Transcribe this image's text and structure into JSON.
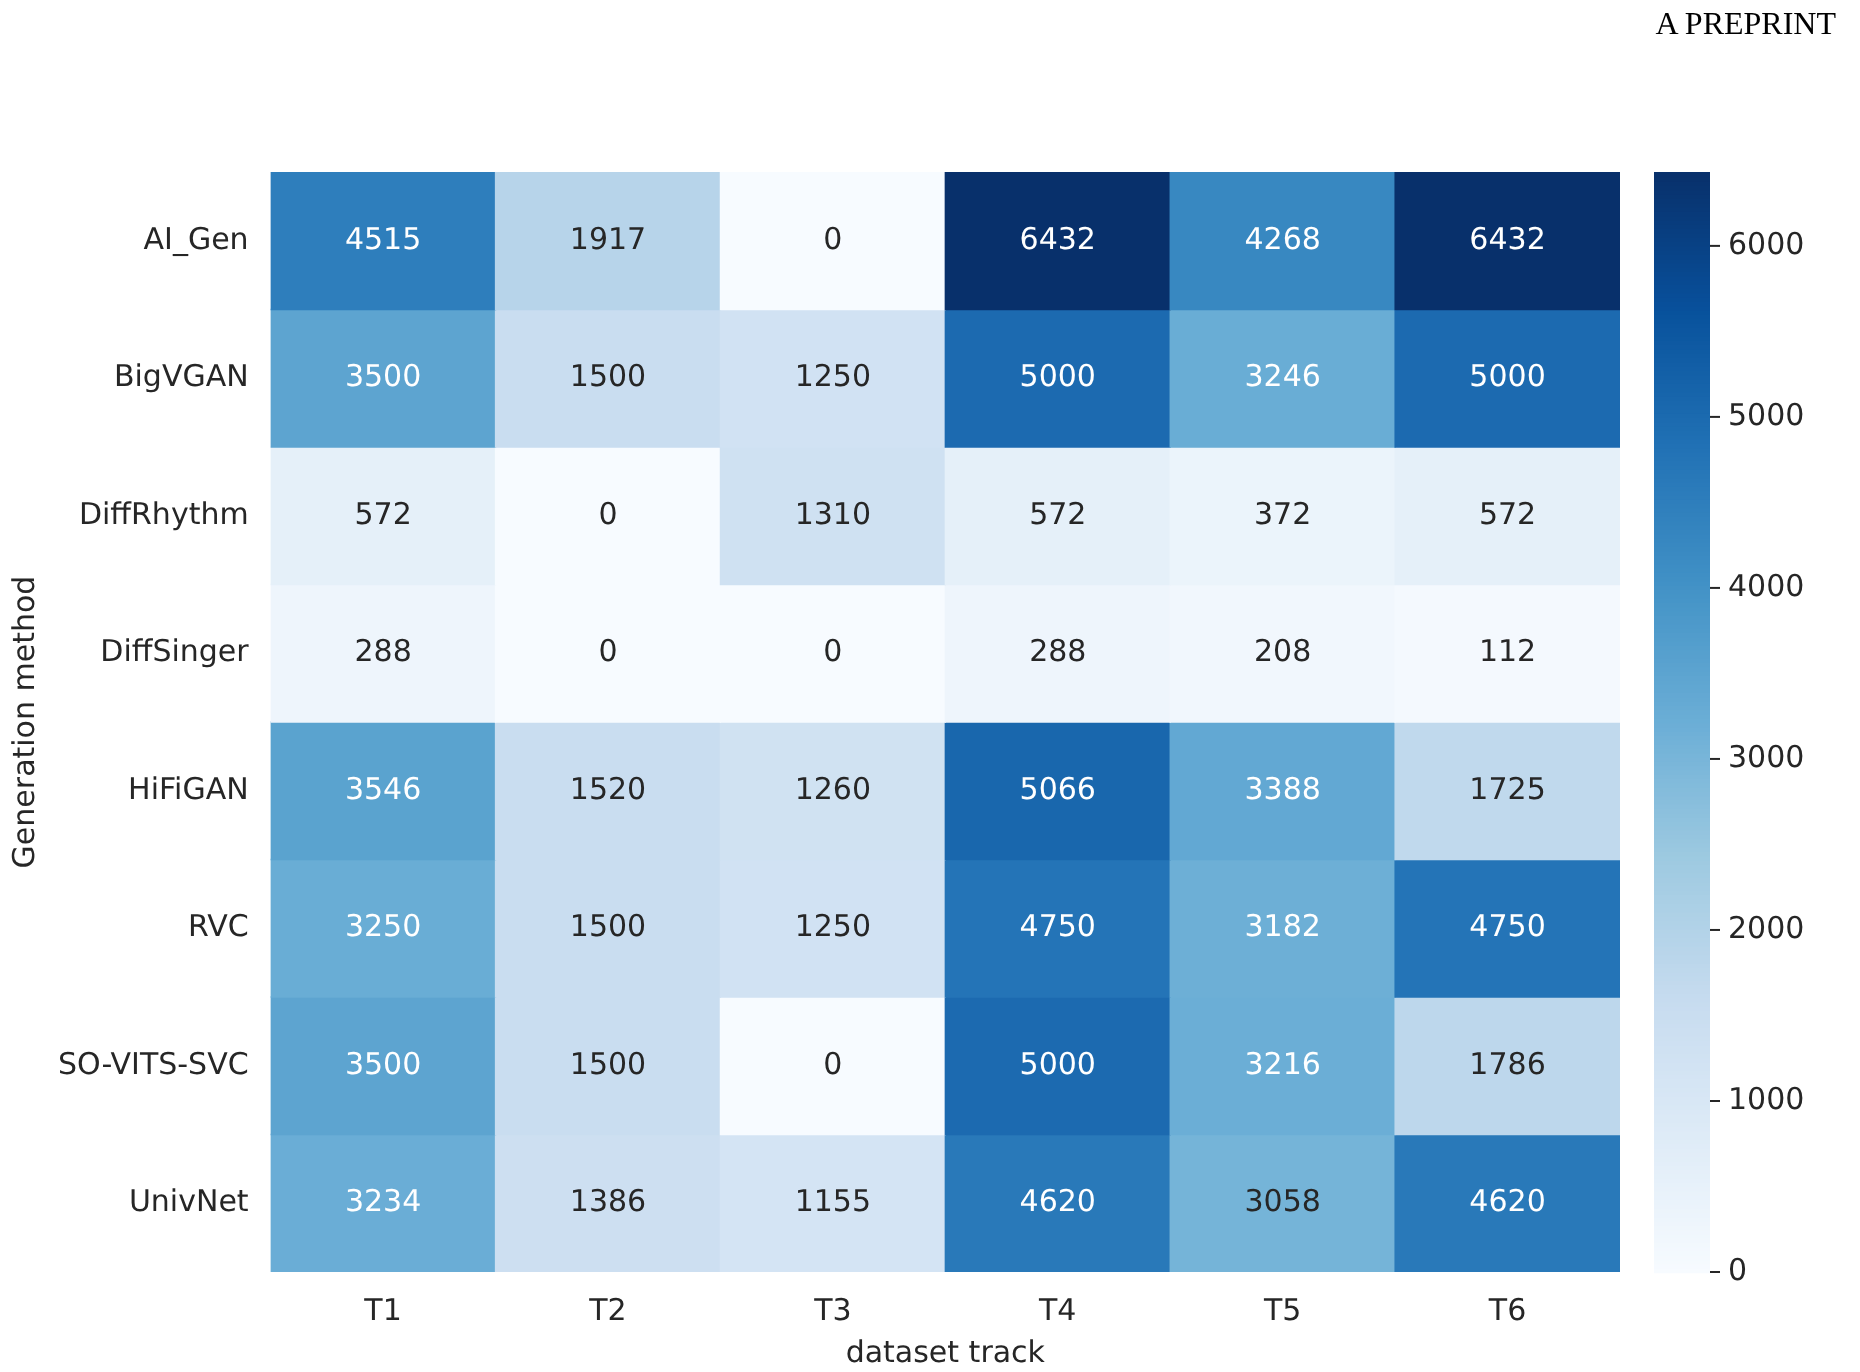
{
  "chart_data": {
    "type": "heatmap",
    "xlabel": "dataset track",
    "ylabel": "Generation method",
    "annotations": [
      "A PREPRINT"
    ],
    "categories": [
      "T1",
      "T2",
      "T3",
      "T4",
      "T5",
      "T6"
    ],
    "y_categories": [
      "AI_Gen",
      "BigVGAN",
      "DiffRhythm",
      "DiffSinger",
      "HiFiGAN",
      "RVC",
      "SO-VITS-SVC",
      "UnivNet"
    ],
    "cells": [
      [
        4515,
        1917,
        0,
        6432,
        4268,
        6432
      ],
      [
        3500,
        1500,
        1250,
        5000,
        3246,
        5000
      ],
      [
        572,
        0,
        1310,
        572,
        372,
        572
      ],
      [
        288,
        0,
        0,
        288,
        208,
        112
      ],
      [
        3546,
        1520,
        1260,
        5066,
        3388,
        1725
      ],
      [
        3250,
        1500,
        1250,
        4750,
        3182,
        4750
      ],
      [
        3500,
        1500,
        0,
        5000,
        3216,
        1786
      ],
      [
        3234,
        1386,
        1155,
        4620,
        3058,
        4620
      ]
    ],
    "data_labels": true,
    "clim": [
      0,
      6432
    ],
    "cticks": [
      0,
      1000,
      2000,
      3000,
      4000,
      5000,
      6000
    ]
  }
}
